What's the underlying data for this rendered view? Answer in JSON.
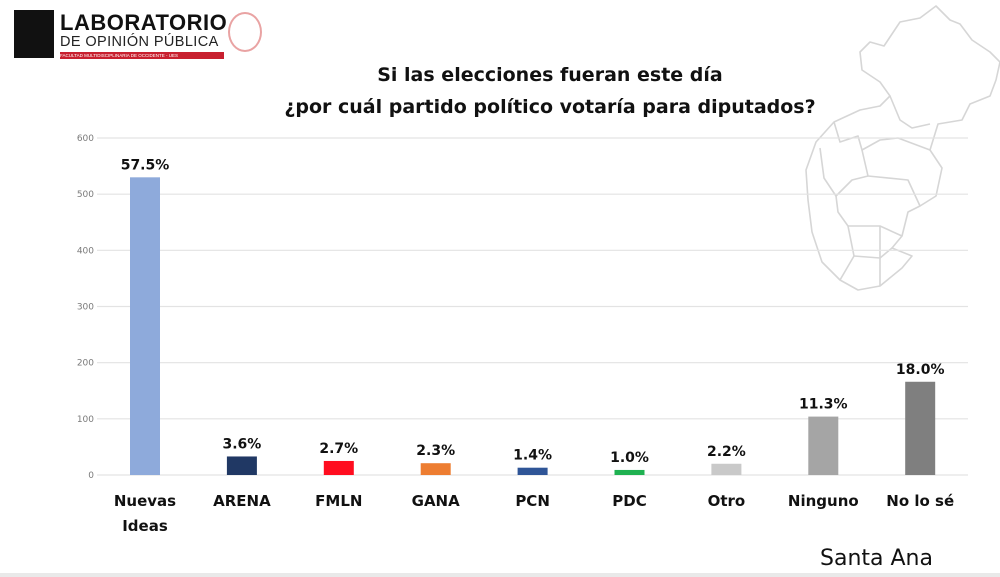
{
  "header": {
    "logo_title": "LABORATORIO",
    "logo_subtitle": "DE OPINIÓN PÚBLICA",
    "logo_band": "FACULTAD MULTIDISCIPLINARIA DE OCCIDENTE - UES"
  },
  "region_label": "Santa Ana",
  "colors": {
    "grid": "#e3e3e3",
    "axis_text": "#7a7a7a",
    "label_text": "#111111",
    "map_outline": "#d8d8d8"
  },
  "chart_data": {
    "type": "bar",
    "title_lines": [
      "Si las elecciones fueran este día",
      "¿por cuál partido político votaría para diputados?"
    ],
    "xlabel": "",
    "ylabel": "",
    "ylim": [
      0,
      600
    ],
    "yticks": [
      0,
      100,
      200,
      300,
      400,
      500,
      600
    ],
    "grid": true,
    "categories": [
      {
        "label_lines": [
          "Nuevas",
          "Ideas"
        ],
        "value": 530,
        "pct_label": "57.5%",
        "color": "#8eaadb"
      },
      {
        "label_lines": [
          "ARENA"
        ],
        "value": 33,
        "pct_label": "3.6%",
        "color": "#203864"
      },
      {
        "label_lines": [
          "FMLN"
        ],
        "value": 25,
        "pct_label": "2.7%",
        "color": "#ff0d1f"
      },
      {
        "label_lines": [
          "GANA"
        ],
        "value": 21,
        "pct_label": "2.3%",
        "color": "#ed7d31"
      },
      {
        "label_lines": [
          "PCN"
        ],
        "value": 13,
        "pct_label": "1.4%",
        "color": "#2f5597"
      },
      {
        "label_lines": [
          "PDC"
        ],
        "value": 9,
        "pct_label": "1.0%",
        "color": "#1fb151"
      },
      {
        "label_lines": [
          "Otro"
        ],
        "value": 20,
        "pct_label": "2.2%",
        "color": "#c9c9c9"
      },
      {
        "label_lines": [
          "Ninguno"
        ],
        "value": 104,
        "pct_label": "11.3%",
        "color": "#a5a5a5"
      },
      {
        "label_lines": [
          "No lo sé"
        ],
        "value": 166,
        "pct_label": "18.0%",
        "color": "#7f7f7f"
      }
    ]
  }
}
